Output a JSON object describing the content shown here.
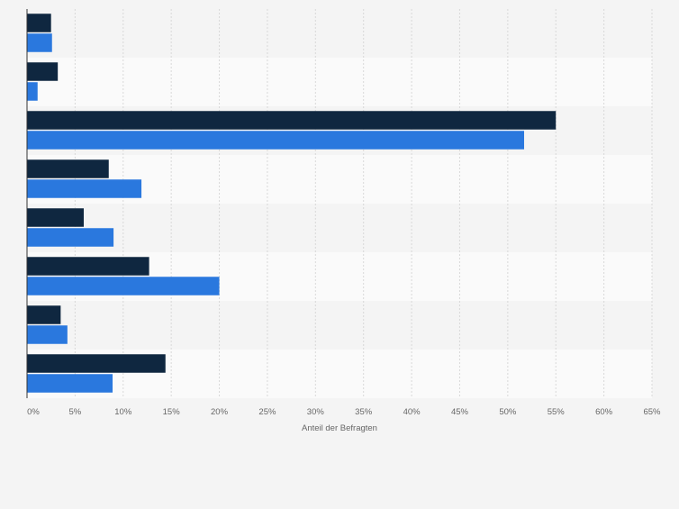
{
  "colors": {
    "page_background": "#f4f4f4",
    "band_light": "#fafafa",
    "band_dark": "#f4f4f4",
    "gridline": "#d9d9d9",
    "axis_line": "#333333",
    "tick_text": "#666666",
    "series_1": "#0f2740",
    "series_2": "#2a78de"
  },
  "chart_data": {
    "type": "bar",
    "orientation": "horizontal",
    "title": "",
    "xlabel": "Anteil der Befragten",
    "ylabel": "",
    "xlim": [
      0,
      65
    ],
    "x_ticks": [
      0,
      5,
      10,
      15,
      20,
      25,
      30,
      35,
      40,
      45,
      50,
      55,
      60,
      65
    ],
    "tick_suffix": "%",
    "grid": true,
    "legend": "none",
    "categories": [
      "",
      "",
      "",
      "",
      "",
      "",
      "",
      ""
    ],
    "series": [
      {
        "values": [
          2.5,
          3.2,
          55.0,
          8.5,
          5.9,
          12.7,
          3.5,
          14.4
        ]
      },
      {
        "values": [
          2.6,
          1.1,
          51.7,
          11.9,
          9.0,
          20.0,
          4.2,
          8.9
        ]
      }
    ]
  }
}
